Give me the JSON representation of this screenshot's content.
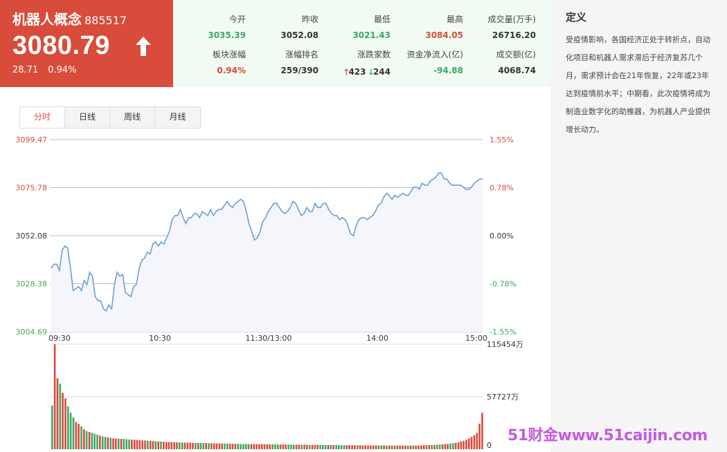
{
  "header": {
    "name": "机器人概念",
    "code": "885517",
    "price": "3080.79",
    "change": "28.71",
    "change_pct": "0.94%",
    "direction_icon": "arrow-up-icon"
  },
  "stats": [
    {
      "label": "今开",
      "value": "3035.39",
      "color": "green"
    },
    {
      "label": "昨收",
      "value": "3052.08",
      "color": "dark"
    },
    {
      "label": "最低",
      "value": "3021.43",
      "color": "green"
    },
    {
      "label": "最高",
      "value": "3084.05",
      "color": "red"
    },
    {
      "label": "成交量(万手)",
      "value": "26716.20",
      "color": "dark"
    },
    {
      "label": "板块涨幅",
      "value": "0.94%",
      "color": "red"
    },
    {
      "label": "涨幅排名",
      "value": "259/390",
      "color": "dark"
    },
    {
      "label": "涨跌家数",
      "up": "423",
      "down": "244",
      "color": "dark"
    },
    {
      "label": "资金净流入(亿)",
      "value": "-94.88",
      "color": "green"
    },
    {
      "label": "成交额(亿)",
      "value": "4068.74",
      "color": "dark"
    }
  ],
  "tabs": [
    "分时",
    "日线",
    "周线",
    "月线"
  ],
  "active_tab": 0,
  "sidebar": {
    "title": "定义",
    "text": "受疫情影响，各国经济正处于转折点，自动化项目和机器人需求滞后于经济复苏几个月，需求预计会在21年恢复，22年或23年达到疫情前水平；中期看，此次疫情将成为制造业数字化的助推器，为机器人产业提供增长动力。"
  },
  "colors": {
    "up": "#d94b3a",
    "down": "#3fa667",
    "line": "#6a9fd0",
    "fill": "#f4f6fb"
  },
  "chart_data": {
    "type": "line",
    "y_ticks_left": [
      "3099.47",
      "3075.78",
      "3052.08",
      "3028.38",
      "3004.69"
    ],
    "y_ticks_right": [
      "1.55%",
      "0.78%",
      "0.00%",
      "-0.78%",
      "-1.55%"
    ],
    "x_ticks": [
      "09:30",
      "10:30",
      "11:30/13:00",
      "14:00",
      "15:00"
    ],
    "ylim": [
      3004.69,
      3099.47
    ],
    "prev_close": 3052.08,
    "price_series": [
      3036,
      3038,
      3038,
      3035,
      3045,
      3047,
      3046,
      3036,
      3025,
      3026,
      3027,
      3025,
      3030,
      3028,
      3034,
      3032,
      3022,
      3020,
      3020,
      3016,
      3015,
      3018,
      3016,
      3028,
      3034,
      3032,
      3033,
      3024,
      3023,
      3022,
      3027,
      3028,
      3036,
      3040,
      3041,
      3044,
      3043,
      3048,
      3049,
      3047,
      3049,
      3048,
      3051,
      3054,
      3060,
      3062,
      3062,
      3065,
      3061,
      3058,
      3061,
      3061,
      3063,
      3063,
      3061,
      3064,
      3063,
      3062,
      3065,
      3062,
      3064,
      3065,
      3065,
      3067,
      3069,
      3067,
      3066,
      3068,
      3069,
      3070,
      3069,
      3064,
      3058,
      3054,
      3050,
      3051,
      3054,
      3059,
      3061,
      3064,
      3066,
      3068,
      3068,
      3066,
      3064,
      3063,
      3064,
      3066,
      3069,
      3068,
      3065,
      3062,
      3063,
      3066,
      3064,
      3064,
      3068,
      3066,
      3066,
      3068,
      3068,
      3065,
      3063,
      3062,
      3062,
      3060,
      3061,
      3060,
      3057,
      3053,
      3052,
      3057,
      3060,
      3061,
      3061,
      3060,
      3061,
      3062,
      3064,
      3067,
      3068,
      3071,
      3073,
      3072,
      3070,
      3072,
      3071,
      3072,
      3073,
      3072,
      3072,
      3074,
      3076,
      3076,
      3075,
      3078,
      3077,
      3077,
      3079,
      3080,
      3081,
      3083,
      3083,
      3080,
      3080,
      3078,
      3077,
      3077,
      3077,
      3077,
      3076,
      3075,
      3075,
      3076,
      3078,
      3079,
      3080,
      3080
    ],
    "volume": {
      "y_ticks": [
        "115454万",
        "57727万",
        "0"
      ],
      "max": 115454,
      "bars": [
        48000,
        115454,
        78000,
        72000,
        62000,
        56000,
        47000,
        40000,
        35000,
        30000,
        28000,
        25000,
        22000,
        20000,
        19000,
        18000,
        17000,
        16000,
        15000,
        14000,
        13500,
        13000,
        12500,
        12000,
        11800,
        11600,
        11400,
        11200,
        11000,
        10800,
        10600,
        10400,
        10200,
        10000,
        9800,
        9600,
        9400,
        9200,
        9000,
        8800,
        8600,
        8400,
        8200,
        8000,
        8000,
        7800,
        7800,
        7600,
        7600,
        7400,
        7400,
        7200,
        7200,
        7000,
        7000,
        6800,
        6800,
        6800,
        6600,
        6600,
        6600,
        6400,
        6400,
        6400,
        6200,
        6200,
        6200,
        6000,
        6000,
        6000,
        6000,
        5800,
        5800,
        5800,
        5800,
        5600,
        5600,
        5600,
        5600,
        5600,
        5400,
        5400,
        5400,
        5400,
        5400,
        5200,
        5200,
        5200,
        5200,
        5200,
        5000,
        5000,
        5000,
        5000,
        5000,
        5000,
        4800,
        4800,
        4800,
        4800,
        4800,
        4800,
        4600,
        4600,
        4600,
        4600,
        4600,
        4600,
        4600,
        4400,
        4400,
        4400,
        4400,
        4400,
        4400,
        4400,
        4400,
        4200,
        4200,
        4200,
        4200,
        4200,
        4200,
        4200,
        4200,
        4200,
        4000,
        4000,
        4000,
        4000,
        4000,
        4000,
        4000,
        4000,
        4000,
        4000,
        4000,
        4000,
        4200,
        4200,
        4400,
        4400,
        4600,
        4600,
        4800,
        5000,
        5200,
        5400,
        5600,
        5800,
        6200,
        6600,
        7000,
        7600,
        8400,
        9200,
        10500,
        12000,
        13500,
        15500,
        18000,
        28000,
        40000
      ]
    }
  },
  "watermark": "51财金www.51caijin.com"
}
